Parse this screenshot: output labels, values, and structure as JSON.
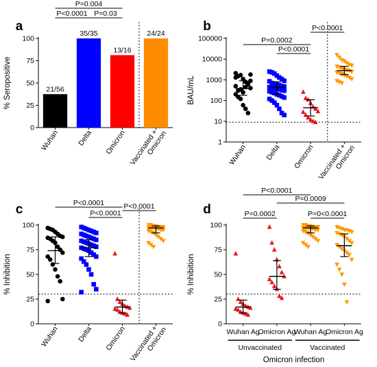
{
  "chart_data": [
    {
      "panel": "a",
      "type": "bar",
      "ylabel": "% Seropositive",
      "ylim": [
        0,
        100
      ],
      "yticks": [
        "0",
        "25",
        "50",
        "75",
        "100"
      ],
      "categories": [
        "Wuhan",
        "Delta",
        "Omicron",
        "Vaccinated + Omicron"
      ],
      "values": [
        37.5,
        100,
        81.25,
        100
      ],
      "bar_labels": [
        "21/56",
        "35/35",
        "13/16",
        "24/24"
      ],
      "colors": [
        "#000000",
        "#0000ff",
        "#ff0000",
        "#ff8c00"
      ],
      "comparisons": [
        {
          "label": "P=0.004",
          "from": 0,
          "to": 2
        },
        {
          "label": "P<0.0001",
          "from": 0,
          "to": 1
        },
        {
          "label": "P=0.03",
          "from": 1,
          "to": 2
        }
      ]
    },
    {
      "panel": "b",
      "type": "scatter",
      "ylabel": "BAU/mL",
      "yscale": "log",
      "ylim": [
        1,
        100000
      ],
      "yticks": [
        "1",
        "10",
        "100",
        "1000",
        "10000",
        "100000"
      ],
      "threshold": 9,
      "categories": [
        "Wuhan",
        "Delta",
        "Omicron",
        "Vaccinated + Omicron"
      ],
      "colors": [
        "#000000",
        "#0000ff",
        "#e8141e",
        "#ff9900"
      ],
      "markers": [
        "circle",
        "square",
        "triangle",
        "triangle-down"
      ],
      "series": [
        {
          "values": [
            2100,
            1500,
            1700,
            1100,
            800,
            600,
            400,
            500,
            300,
            350,
            250,
            450,
            700,
            900,
            200,
            150,
            120,
            60,
            40,
            25,
            1800,
            1300
          ],
          "median": 380,
          "iqr": [
            180,
            900
          ]
        },
        {
          "values": [
            2500,
            2300,
            2000,
            1600,
            1300,
            1100,
            900,
            850,
            700,
            650,
            600,
            550,
            500,
            480,
            450,
            420,
            400,
            380,
            350,
            320,
            300,
            280,
            250,
            230,
            200,
            180,
            160,
            140,
            120,
            100,
            80,
            60,
            40,
            25,
            20
          ],
          "median": 430,
          "iqr": [
            200,
            800
          ]
        },
        {
          "values": [
            260,
            130,
            110,
            75,
            50,
            40,
            30,
            28,
            20,
            15,
            12,
            10,
            9
          ],
          "median": 45,
          "iqr": [
            18,
            110
          ]
        },
        {
          "values": [
            16000,
            12000,
            9000,
            8000,
            6500,
            5500,
            5000,
            4500,
            4000,
            3500,
            3200,
            3000,
            2800,
            2500,
            2300,
            2100,
            1900,
            1700,
            1500,
            1300,
            1100,
            900,
            800,
            700
          ],
          "median": 2800,
          "iqr": [
            1800,
            4500
          ]
        }
      ],
      "comparisons": [
        {
          "label": "P=0.0002",
          "from": 0,
          "to": 2
        },
        {
          "label": "P<0.0001",
          "from": 1,
          "to": 2
        },
        {
          "label": "P<0.0001",
          "from": 2,
          "to": 3
        }
      ]
    },
    {
      "panel": "c",
      "type": "scatter",
      "ylabel": "% Inhibition",
      "ylim": [
        0,
        100
      ],
      "yticks": [
        "0",
        "25",
        "50",
        "75",
        "100"
      ],
      "threshold": 30,
      "categories": [
        "Wuhan",
        "Delta",
        "Omicron",
        "Vaccinated + Omicron"
      ],
      "colors": [
        "#000000",
        "#0000ff",
        "#e8141e",
        "#ff9900"
      ],
      "markers": [
        "circle",
        "square",
        "triangle",
        "triangle-down"
      ],
      "series": [
        {
          "values": [
            97,
            96,
            95,
            93,
            91,
            89,
            88,
            87,
            86,
            84,
            82,
            78,
            75,
            72,
            68,
            65,
            60,
            55,
            48,
            43,
            25,
            23
          ],
          "median": 74,
          "iqr": [
            61,
            88
          ]
        },
        {
          "values": [
            98,
            97,
            96,
            95,
            94,
            93,
            92,
            91,
            90,
            89,
            88,
            87,
            86,
            85,
            84,
            83,
            82,
            81,
            80,
            79,
            78,
            77,
            76,
            75,
            74,
            72,
            70,
            68,
            66,
            63,
            60,
            55,
            50,
            40,
            35,
            32
          ],
          "median": 77,
          "iqr": [
            68,
            85
          ]
        },
        {
          "values": [
            71,
            25,
            22,
            20,
            18,
            17,
            16,
            15,
            14,
            12,
            11,
            10,
            9
          ],
          "median": 17,
          "iqr": [
            11,
            24
          ]
        },
        {
          "values": [
            100,
            100,
            99,
            99,
            98,
            98,
            98,
            97,
            97,
            97,
            96,
            96,
            95,
            95,
            94,
            93,
            92,
            90,
            88,
            86,
            84,
            82,
            80,
            78
          ],
          "median": 97,
          "iqr": [
            92,
            99
          ]
        }
      ],
      "comparisons": [
        {
          "label": "P<0.0001",
          "from": 0,
          "to": 2
        },
        {
          "label": "P<0.0001",
          "from": 1,
          "to": 2
        },
        {
          "label": "P<0.0001",
          "from": 2,
          "to": 3
        }
      ]
    },
    {
      "panel": "d",
      "type": "scatter",
      "ylabel": "% Inhibition",
      "ylim": [
        0,
        100
      ],
      "yticks": [
        "0",
        "25",
        "50",
        "75",
        "100"
      ],
      "threshold": 30,
      "categories": [
        "Wuhan Ag",
        "Omicron Ag",
        "Wuhan Ag",
        "Omicron Ag"
      ],
      "groups": [
        {
          "label": "Unvaccinated",
          "from": 0,
          "to": 1
        },
        {
          "label": "Vaccinated",
          "from": 2,
          "to": 3
        }
      ],
      "xlabel": "Omicron infection",
      "colors": [
        "#e8141e",
        "#e8141e",
        "#ff9900",
        "#ff9900"
      ],
      "markers": [
        "triangle",
        "triangle",
        "triangle-down",
        "triangle-down"
      ],
      "series": [
        {
          "values": [
            71,
            25,
            22,
            20,
            18,
            17,
            16,
            15,
            14,
            12,
            11,
            10,
            9
          ],
          "median": 17,
          "iqr": [
            11,
            24
          ]
        },
        {
          "values": [
            98,
            82,
            75,
            65,
            58,
            52,
            48,
            45,
            42,
            38,
            35,
            28,
            26
          ],
          "median": 48,
          "iqr": [
            35,
            64
          ]
        },
        {
          "values": [
            100,
            100,
            99,
            99,
            98,
            98,
            98,
            97,
            97,
            97,
            96,
            96,
            95,
            95,
            94,
            93,
            92,
            90,
            88,
            86,
            84,
            82,
            80,
            78
          ],
          "median": 97,
          "iqr": [
            92,
            99
          ]
        },
        {
          "values": [
            98,
            97,
            96,
            95,
            95,
            94,
            93,
            92,
            91,
            90,
            88,
            86,
            84,
            82,
            80,
            78,
            76,
            74,
            72,
            70,
            65,
            60,
            55,
            50,
            40,
            22
          ],
          "median": 79,
          "iqr": [
            68,
            91
          ]
        }
      ],
      "comparisons": [
        {
          "label": "P<0.0001",
          "from": 0,
          "to": 2
        },
        {
          "label": "P=0.0009",
          "from": 1,
          "to": 3
        },
        {
          "label": "P=0.0002",
          "from": 0,
          "to": 1
        },
        {
          "label": "P=0<0.0001",
          "from": 2,
          "to": 3
        }
      ]
    }
  ]
}
